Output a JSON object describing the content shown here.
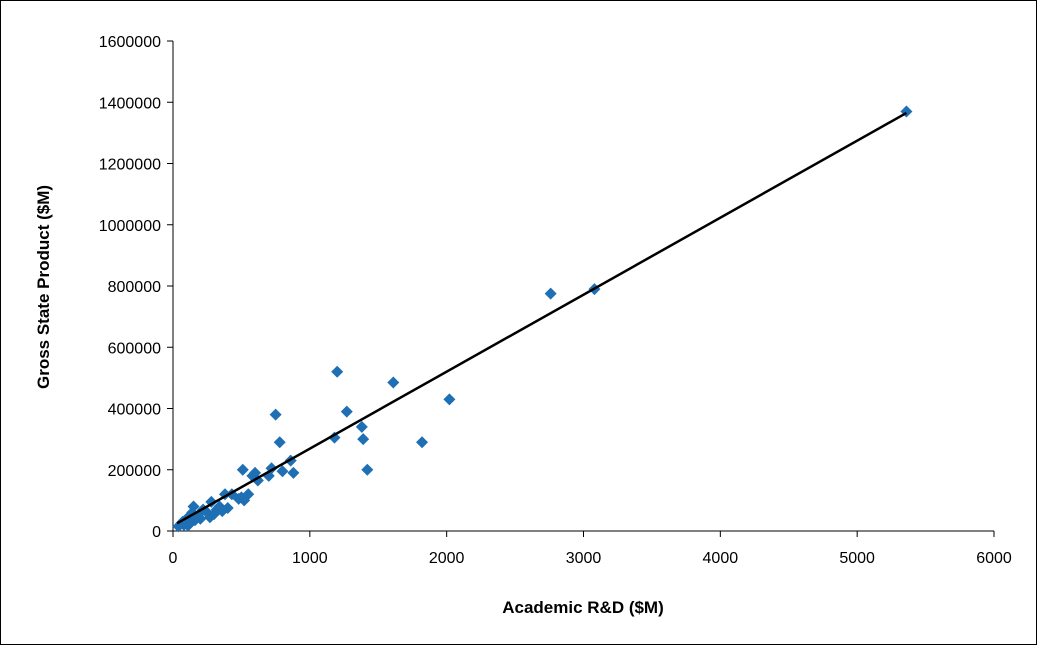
{
  "chart_data": {
    "type": "scatter",
    "title": "",
    "xlabel": "Academic R&D ($M)",
    "ylabel": "Gross State Product ($M)",
    "xlim": [
      0,
      6000
    ],
    "ylim": [
      0,
      1600000
    ],
    "x_ticks": [
      "0",
      "1000",
      "2000",
      "3000",
      "4000",
      "5000",
      "6000"
    ],
    "y_ticks": [
      "0",
      "200000",
      "400000",
      "600000",
      "800000",
      "1000000",
      "1200000",
      "1400000",
      "1600000"
    ],
    "grid": false,
    "legend": "none",
    "marker": "diamond",
    "colors": {
      "points": "#1F6FB4",
      "trendline": "#000000"
    },
    "series": [
      {
        "points": [
          [
            40,
            15000
          ],
          [
            60,
            25000
          ],
          [
            70,
            30000
          ],
          [
            80,
            20000
          ],
          [
            90,
            35000
          ],
          [
            100,
            40000
          ],
          [
            110,
            18000
          ],
          [
            120,
            45000
          ],
          [
            130,
            30000
          ],
          [
            140,
            60000
          ],
          [
            150,
            80000
          ],
          [
            160,
            35000
          ],
          [
            180,
            50000
          ],
          [
            200,
            40000
          ],
          [
            220,
            70000
          ],
          [
            250,
            60000
          ],
          [
            270,
            45000
          ],
          [
            280,
            95000
          ],
          [
            300,
            55000
          ],
          [
            320,
            70000
          ],
          [
            340,
            80000
          ],
          [
            360,
            65000
          ],
          [
            380,
            120000
          ],
          [
            400,
            75000
          ],
          [
            430,
            120000
          ],
          [
            480,
            105000
          ],
          [
            500,
            110000
          ],
          [
            510,
            200000
          ],
          [
            520,
            100000
          ],
          [
            550,
            120000
          ],
          [
            580,
            180000
          ],
          [
            600,
            190000
          ],
          [
            620,
            165000
          ],
          [
            700,
            180000
          ],
          [
            720,
            205000
          ],
          [
            750,
            380000
          ],
          [
            780,
            290000
          ],
          [
            800,
            195000
          ],
          [
            860,
            230000
          ],
          [
            880,
            190000
          ],
          [
            1180,
            305000
          ],
          [
            1200,
            520000
          ],
          [
            1270,
            390000
          ],
          [
            1380,
            340000
          ],
          [
            1390,
            300000
          ],
          [
            1420,
            200000
          ],
          [
            1610,
            485000
          ],
          [
            1820,
            290000
          ],
          [
            2020,
            430000
          ],
          [
            2760,
            775000
          ],
          [
            3080,
            790000
          ],
          [
            5360,
            1370000
          ]
        ]
      }
    ],
    "trendline": {
      "x_start": 30,
      "y_start": 25000,
      "x_end": 5360,
      "y_end": 1365000
    }
  }
}
